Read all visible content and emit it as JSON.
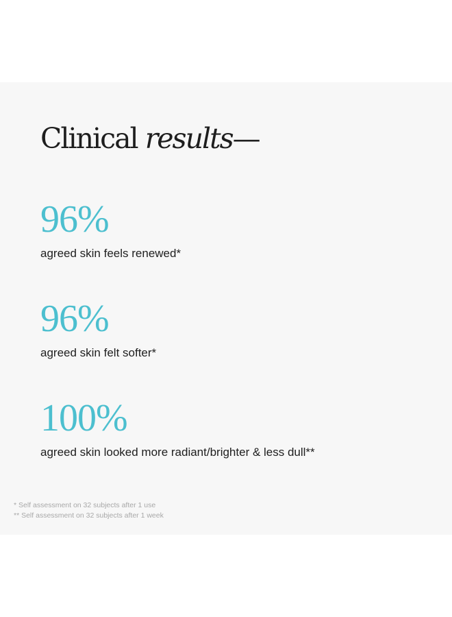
{
  "heading": {
    "main": "Clinical",
    "italic": "results",
    "dash": "—"
  },
  "stats": [
    {
      "value": "96%",
      "label": "agreed skin feels renewed*"
    },
    {
      "value": "96%",
      "label": "agreed skin felt softer*"
    },
    {
      "value": "100%",
      "label": "agreed skin looked more radiant/brighter & less dull**"
    }
  ],
  "footnotes": [
    "* Self assessment on 32 subjects after 1 use",
    "** Self assessment on 32 subjects after 1 week"
  ],
  "colors": {
    "accent": "#4cbfcf",
    "text": "#1e1e1e",
    "panel": "#f7f7f7"
  }
}
